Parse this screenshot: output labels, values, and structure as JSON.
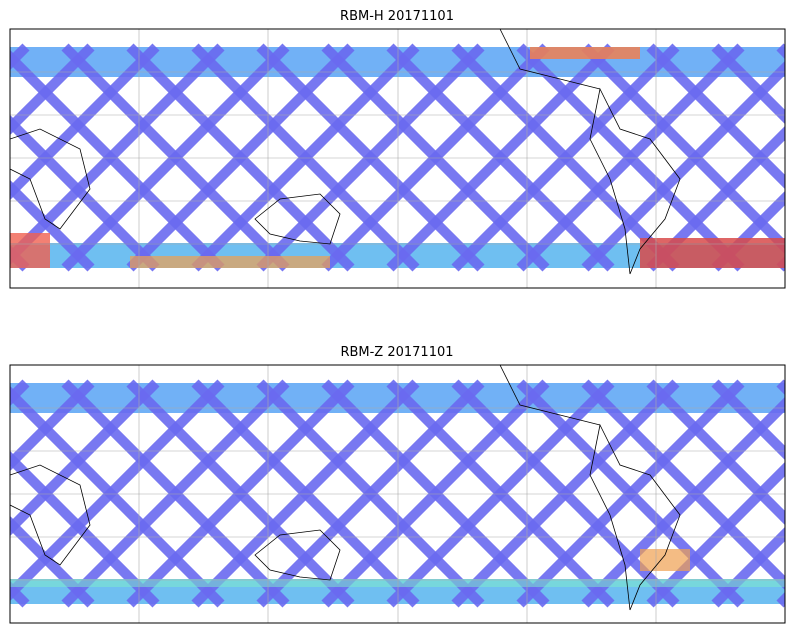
{
  "panels": [
    {
      "title": "RBM-H 20171101"
    },
    {
      "title": "RBM-Z 20171101"
    }
  ]
}
